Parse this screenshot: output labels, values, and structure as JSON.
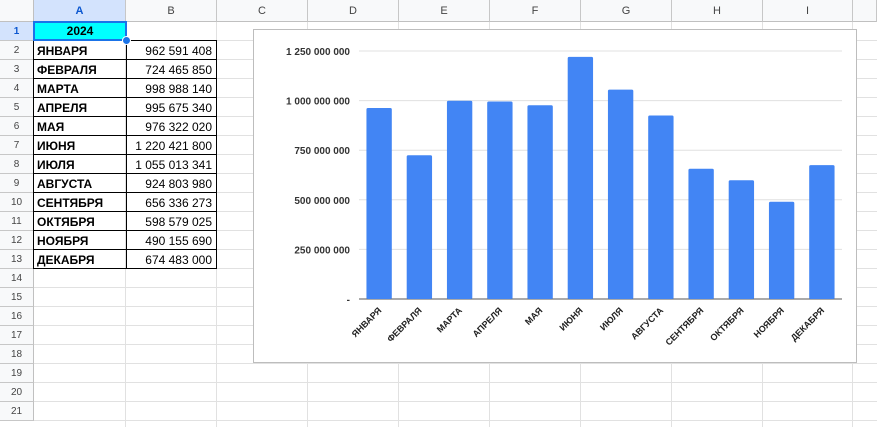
{
  "columns": [
    "A",
    "B",
    "C",
    "D",
    "E",
    "F",
    "G",
    "H",
    "I"
  ],
  "rows": [
    "1",
    "2",
    "3",
    "4",
    "5",
    "6",
    "7",
    "8",
    "9",
    "10",
    "11",
    "12",
    "13",
    "14",
    "15",
    "16",
    "17",
    "18",
    "19",
    "20",
    "21"
  ],
  "year_header": "2024",
  "table": [
    {
      "month": "ЯНВАРЯ",
      "value": "962 591 408"
    },
    {
      "month": "ФЕВРАЛЯ",
      "value": "724 465 850"
    },
    {
      "month": "МАРТА",
      "value": "998 988 140"
    },
    {
      "month": "АПРЕЛЯ",
      "value": "995 675 340"
    },
    {
      "month": "МАЯ",
      "value": "976 322 020"
    },
    {
      "month": "ИЮНЯ",
      "value": "1 220 421 800"
    },
    {
      "month": "ИЮЛЯ",
      "value": "1 055 013 341"
    },
    {
      "month": "АВГУСТА",
      "value": "924 803 980"
    },
    {
      "month": "СЕНТЯБРЯ",
      "value": "656 336 273"
    },
    {
      "month": "ОКТЯБРЯ",
      "value": "598 579 025"
    },
    {
      "month": "НОЯБРЯ",
      "value": "490 155 690"
    },
    {
      "month": "ДЕКАБРЯ",
      "value": "674 483 000"
    }
  ],
  "colors": {
    "header_fill": "#00ffff",
    "bar": "#4285f4",
    "selection": "#1a73e8"
  },
  "chart_data": {
    "type": "bar",
    "categories": [
      "ЯНВАРЯ",
      "ФЕВРАЛЯ",
      "МАРТА",
      "АПРЕЛЯ",
      "МАЯ",
      "ИЮНЯ",
      "ИЮЛЯ",
      "АВГУСТА",
      "СЕНТЯБРЯ",
      "ОКТЯБРЯ",
      "НОЯБРЯ",
      "ДЕКАБРЯ"
    ],
    "values": [
      962591408,
      724465850,
      998988140,
      995675340,
      976322020,
      1220421800,
      1055013341,
      924803980,
      656336273,
      598579025,
      490155690,
      674483000
    ],
    "ylim": [
      0,
      1250000000
    ],
    "yticks": [
      0,
      250000000,
      500000000,
      750000000,
      1000000000,
      1250000000
    ],
    "ytick_labels": [
      "-",
      "250 000 000",
      "500 000 000",
      "750 000 000",
      "1 000 000 000",
      "1 250 000 000"
    ],
    "grid": true,
    "legend": "none"
  }
}
